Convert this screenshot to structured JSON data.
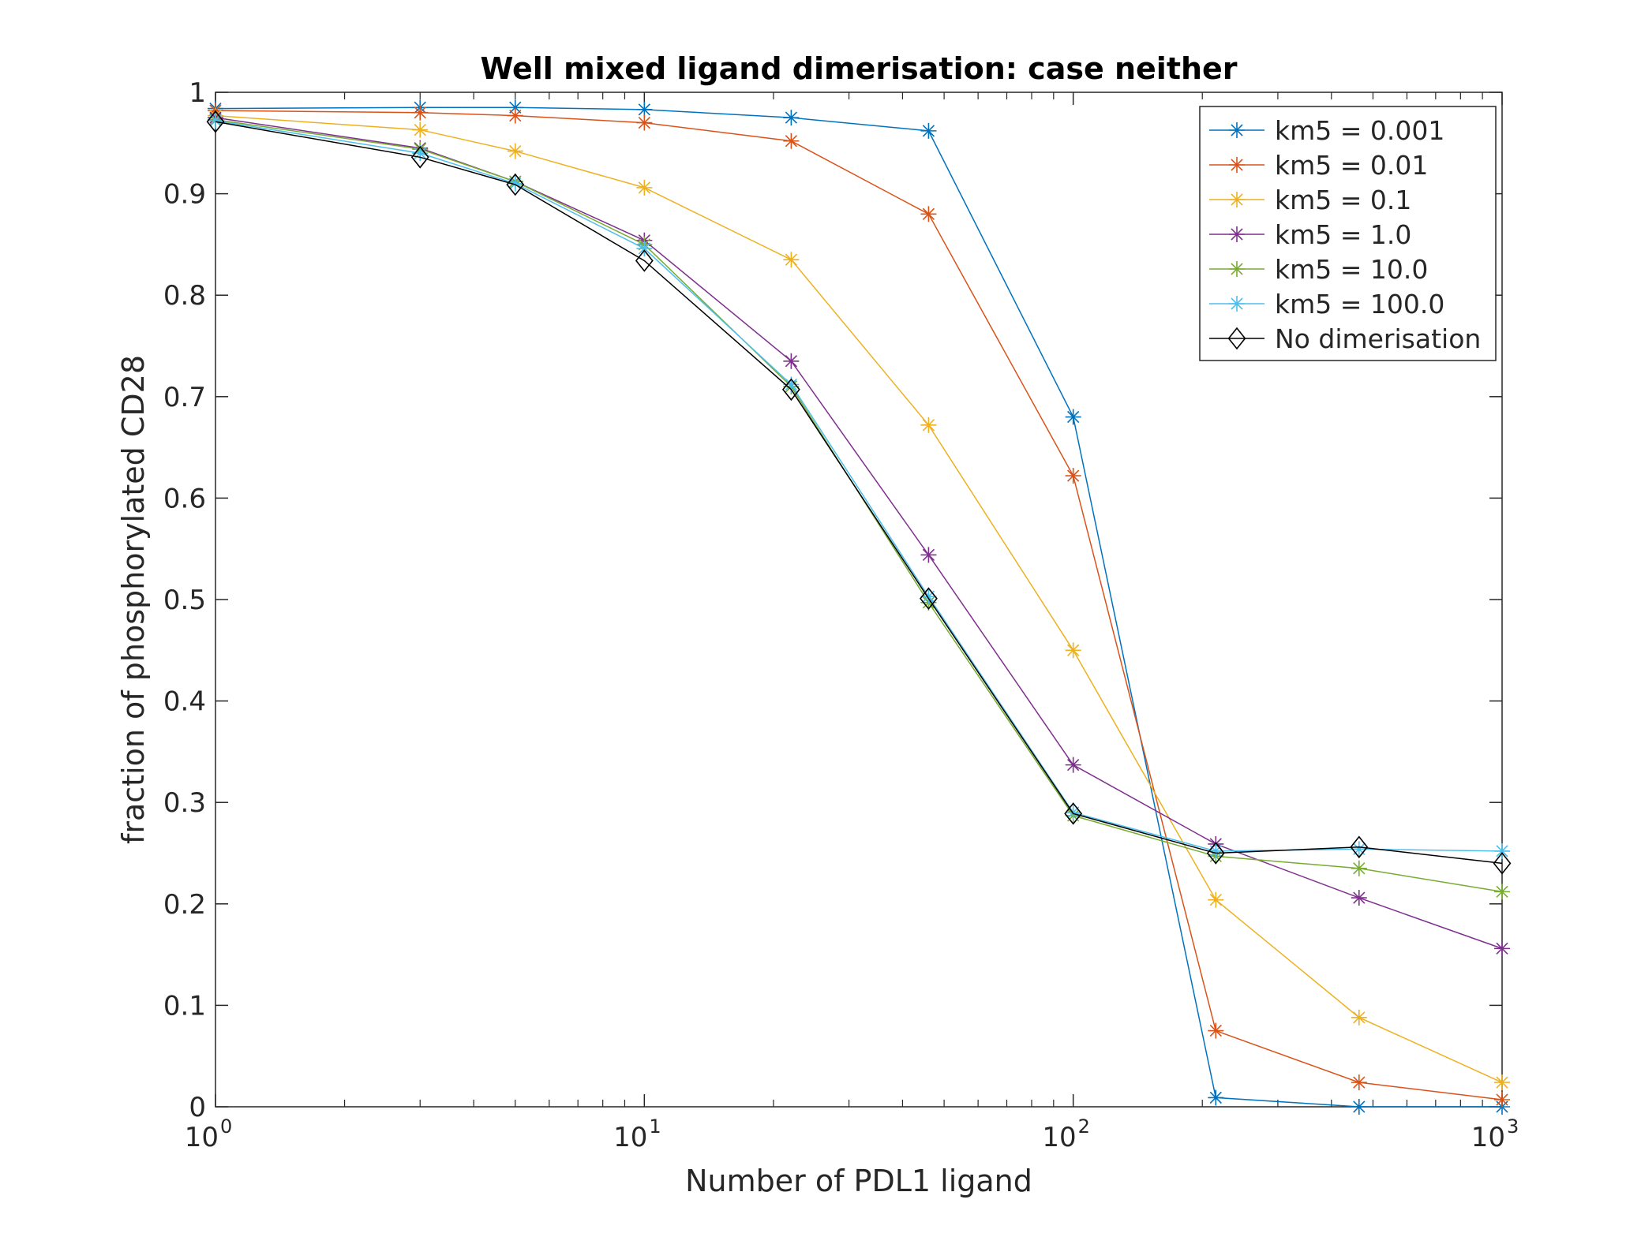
{
  "chart_data": {
    "type": "line",
    "title": "Well mixed ligand dimerisation: case neither",
    "xlabel": "Number of PDL1 ligand",
    "ylabel": "fraction of phosphorylated CD28",
    "xscale": "log",
    "xlim": [
      1,
      1000
    ],
    "ylim": [
      0,
      1
    ],
    "grid": false,
    "legend_position": "top-right",
    "x_ticks": [
      {
        "base": "10",
        "exp": "0",
        "value": 1
      },
      {
        "base": "10",
        "exp": "1",
        "value": 10
      },
      {
        "base": "10",
        "exp": "2",
        "value": 100
      },
      {
        "base": "10",
        "exp": "3",
        "value": 1000
      }
    ],
    "y_ticks": [
      {
        "label": "0",
        "value": 0
      },
      {
        "label": "0.1",
        "value": 0.1
      },
      {
        "label": "0.2",
        "value": 0.2
      },
      {
        "label": "0.3",
        "value": 0.3
      },
      {
        "label": "0.4",
        "value": 0.4
      },
      {
        "label": "0.5",
        "value": 0.5
      },
      {
        "label": "0.6",
        "value": 0.6
      },
      {
        "label": "0.7",
        "value": 0.7
      },
      {
        "label": "0.8",
        "value": 0.8
      },
      {
        "label": "0.9",
        "value": 0.9
      },
      {
        "label": "1",
        "value": 1
      }
    ],
    "x": [
      1,
      3,
      5,
      10,
      22,
      46,
      100,
      215,
      464,
      1000
    ],
    "series": [
      {
        "name": "km5 = 0.001",
        "color": "#0072BD",
        "marker": "asterisk",
        "values": [
          0.984,
          0.985,
          0.985,
          0.983,
          0.975,
          0.962,
          0.68,
          0.009,
          0.0,
          0.0
        ]
      },
      {
        "name": "km5 = 0.01",
        "color": "#D95319",
        "marker": "asterisk",
        "values": [
          0.982,
          0.98,
          0.977,
          0.97,
          0.952,
          0.88,
          0.622,
          0.075,
          0.024,
          0.007
        ]
      },
      {
        "name": "km5 = 0.1",
        "color": "#EDB120",
        "marker": "asterisk",
        "values": [
          0.977,
          0.963,
          0.942,
          0.906,
          0.835,
          0.672,
          0.45,
          0.204,
          0.088,
          0.024
        ]
      },
      {
        "name": "km5 = 1.0",
        "color": "#7E2F8E",
        "marker": "asterisk",
        "values": [
          0.975,
          0.945,
          0.912,
          0.854,
          0.735,
          0.544,
          0.337,
          0.259,
          0.206,
          0.156
        ]
      },
      {
        "name": "km5 = 10.0",
        "color": "#77AC30",
        "marker": "asterisk",
        "values": [
          0.973,
          0.944,
          0.912,
          0.85,
          0.71,
          0.497,
          0.287,
          0.247,
          0.235,
          0.212
        ]
      },
      {
        "name": "km5 = 100.0",
        "color": "#4DBEEE",
        "marker": "asterisk",
        "values": [
          0.972,
          0.94,
          0.91,
          0.846,
          0.712,
          0.503,
          0.29,
          0.252,
          0.254,
          0.252
        ]
      },
      {
        "name": "No dimerisation",
        "color": "#000000",
        "marker": "diamond",
        "values": [
          0.971,
          0.936,
          0.909,
          0.834,
          0.707,
          0.501,
          0.289,
          0.25,
          0.256,
          0.24
        ]
      }
    ]
  }
}
